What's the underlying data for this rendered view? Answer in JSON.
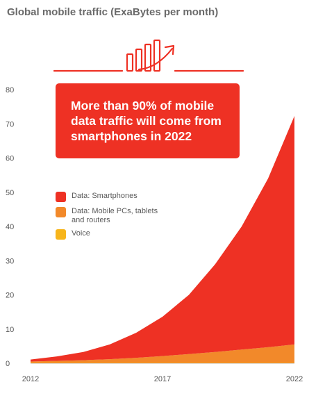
{
  "chart_data": {
    "type": "area",
    "stacked": true,
    "title": "Global mobile traffic (ExaBytes per month)",
    "annotation": [
      "More than 90% of mobile",
      "data traffic will come from",
      "smartphones in 2022"
    ],
    "x": [
      2012,
      2013,
      2014,
      2015,
      2016,
      2017,
      2018,
      2019,
      2020,
      2021,
      2022
    ],
    "x_ticks": [
      "2012",
      "2017",
      "2022"
    ],
    "y_ticks": [
      0,
      10,
      20,
      30,
      40,
      50,
      60,
      70,
      80
    ],
    "ylim": [
      0,
      80
    ],
    "series": [
      {
        "name": "Voice",
        "color": "#f7b51b",
        "values": [
          0.1,
          0.1,
          0.1,
          0.1,
          0.1,
          0.1,
          0.1,
          0.1,
          0.1,
          0.1,
          0.1
        ]
      },
      {
        "name": "Data: Mobile PCs, tablets and routers",
        "color": "#f2892a",
        "values": [
          0.4,
          0.6,
          0.8,
          1.1,
          1.5,
          2.0,
          2.6,
          3.2,
          3.9,
          4.6,
          5.4
        ]
      },
      {
        "name": "Data: Smartphones",
        "color": "#ee3124",
        "values": [
          0.6,
          1.3,
          2.4,
          4.3,
          7.3,
          11.5,
          17.3,
          25.7,
          36.0,
          49.3,
          66.8
        ]
      }
    ],
    "legend": [
      {
        "label": "Data: Smartphones",
        "color": "#ee3124"
      },
      {
        "label": "Data: Mobile PCs, tablets and routers",
        "color": "#f2892a"
      },
      {
        "label": "Voice",
        "color": "#f7b51b"
      }
    ],
    "legend_position": "center-left",
    "grid": false
  },
  "accent_color": "#ee3124",
  "icon": "rising-bar-chart-icon"
}
